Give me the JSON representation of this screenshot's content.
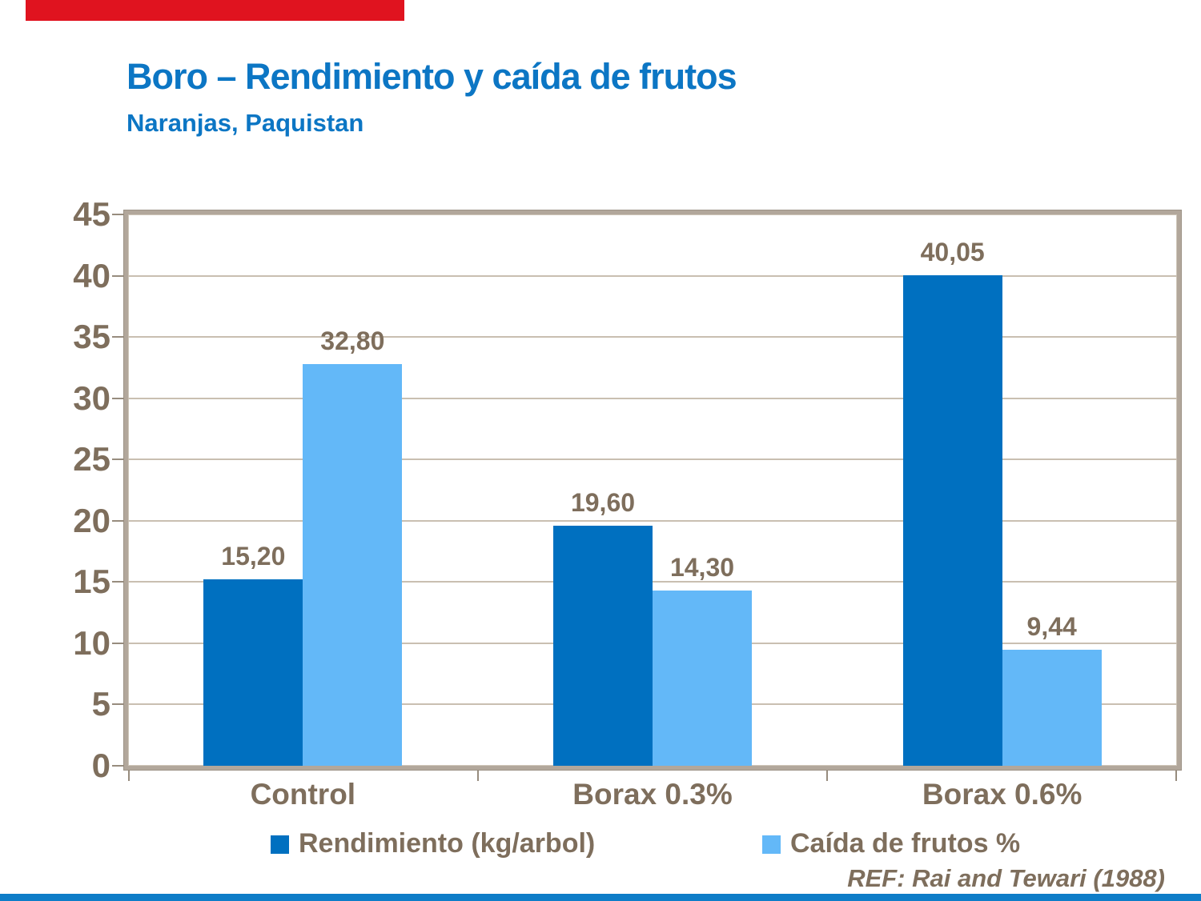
{
  "slide": {
    "title": "Boro – Rendimiento y caída de frutos",
    "subtitle": "Naranjas, Paquistan",
    "reference": "REF: Rai and Tewari (1988)",
    "accent_red_bar": "#e0131f",
    "accent_blue_bar": "#0e7dc8",
    "title_color": "#0c76c4",
    "text_brown": "#7e6e5c"
  },
  "chart_data": {
    "type": "bar",
    "categories": [
      "Control",
      "Borax 0.3%",
      "Borax 0.6%"
    ],
    "series": [
      {
        "name": "Rendimiento (kg/arbol)",
        "color": "#0070c0",
        "values": [
          15.2,
          19.6,
          40.05
        ],
        "value_labels": [
          "15,20",
          "19,60",
          "40,05"
        ]
      },
      {
        "name": "Caída de frutos %",
        "color": "#63b8f8",
        "values": [
          32.8,
          14.3,
          9.44
        ],
        "value_labels": [
          "32,80",
          "14,30",
          "9,44"
        ]
      }
    ],
    "ylim": [
      0,
      45
    ],
    "yticks": [
      0,
      5,
      10,
      15,
      20,
      25,
      30,
      35,
      40,
      45
    ],
    "grid": true,
    "legend_position": "bottom",
    "gridline_color": "#c9bfb1",
    "axis_frame_color": "#b2a79b"
  }
}
